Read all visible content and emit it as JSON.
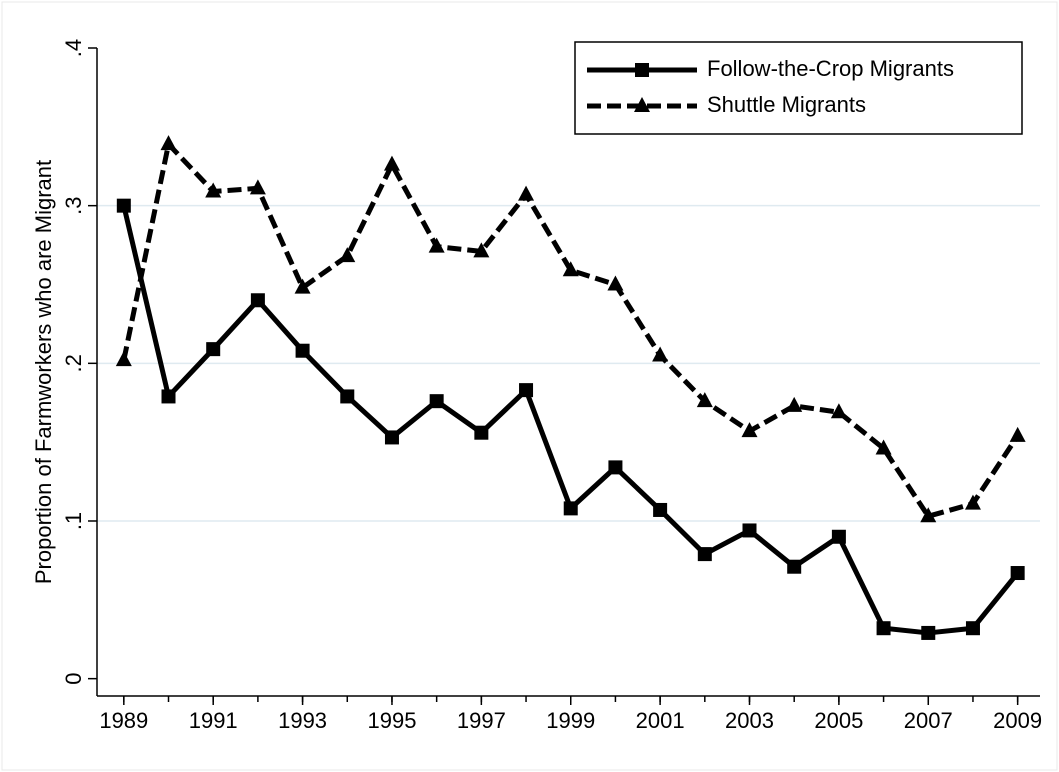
{
  "chart_data": {
    "type": "line",
    "y_label": "Proportion of Farmworkers who are Migrant",
    "x": [
      1989,
      1990,
      1991,
      1992,
      1993,
      1994,
      1995,
      1996,
      1997,
      1998,
      1999,
      2000,
      2001,
      2002,
      2003,
      2004,
      2005,
      2006,
      2007,
      2008,
      2009
    ],
    "series": [
      {
        "name": "Follow-the-Crop Migrants",
        "color": "#000000",
        "dash": "solid",
        "marker": "square",
        "values": [
          0.3,
          0.179,
          0.209,
          0.24,
          0.208,
          0.179,
          0.153,
          0.176,
          0.156,
          0.183,
          0.108,
          0.134,
          0.107,
          0.079,
          0.094,
          0.071,
          0.09,
          0.032,
          0.029,
          0.032,
          0.067
        ]
      },
      {
        "name": "Shuttle Migrants",
        "color": "#000000",
        "dash": "dashed",
        "marker": "triangle",
        "values": [
          0.202,
          0.339,
          0.309,
          0.311,
          0.248,
          0.268,
          0.326,
          0.274,
          0.271,
          0.307,
          0.259,
          0.25,
          0.205,
          0.176,
          0.157,
          0.173,
          0.169,
          0.146,
          0.103,
          0.111,
          0.154
        ]
      }
    ],
    "xlim": [
      1988.4,
      2009.5
    ],
    "xticks": [
      1989,
      1991,
      1993,
      1995,
      1997,
      1999,
      2001,
      2003,
      2005,
      2007,
      2009
    ],
    "ylim": [
      -0.011,
      0.4
    ],
    "yticks": [
      0,
      {
        "value": 0.1,
        "label": ".1"
      },
      {
        "value": 0.2,
        "label": ".2"
      },
      {
        "value": 0.3,
        "label": ".3"
      },
      {
        "value": 0.4,
        "label": ".4"
      }
    ],
    "grid": true,
    "grid_color": "#dfeaf0",
    "legend": "top-right"
  }
}
